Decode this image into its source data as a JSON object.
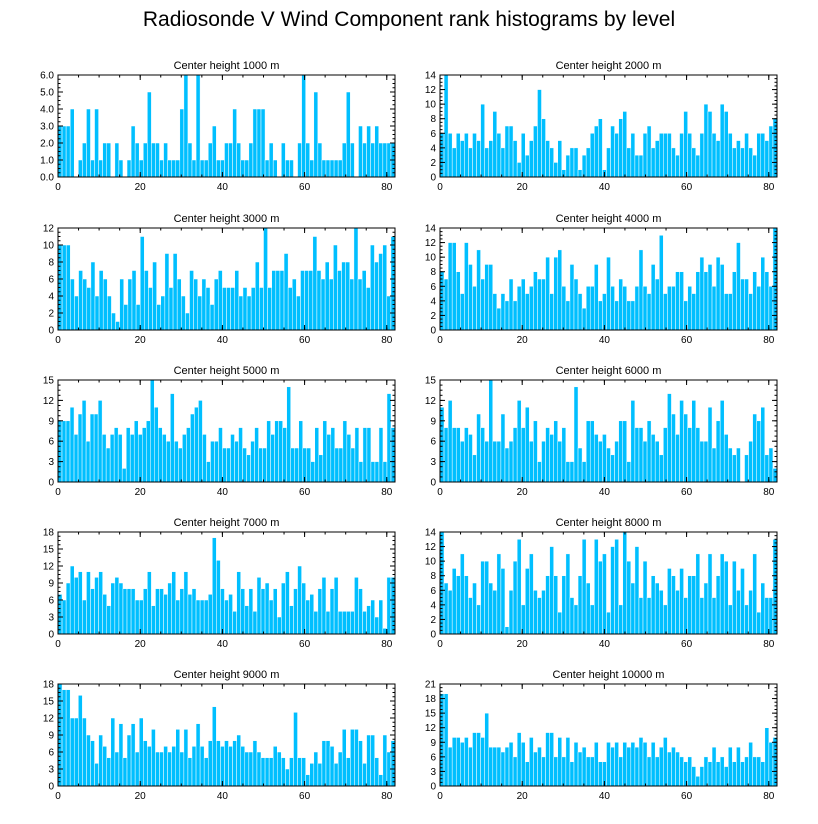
{
  "title": "Radiosonde V Wind Component rank histograms by level",
  "chart_data": [
    {
      "type": "bar",
      "title": "Center height 1000 m",
      "xticks": [
        "0",
        "20",
        "40",
        "60",
        "80"
      ],
      "yticks": [
        "0.0",
        "1.0",
        "2.0",
        "3.0",
        "4.0",
        "5.0",
        "6.0"
      ],
      "ylim": [
        0,
        6
      ],
      "xlim": [
        0,
        82
      ],
      "values": [
        3,
        3,
        3,
        4,
        0,
        1,
        2,
        4,
        1,
        4,
        1,
        2,
        2,
        0,
        2,
        1,
        0,
        1,
        3,
        2,
        1,
        2,
        5,
        2,
        2,
        1,
        2,
        1,
        1,
        1,
        4,
        6,
        2,
        1,
        6,
        1,
        1,
        2,
        3,
        1,
        1,
        2,
        2,
        4,
        2,
        1,
        1,
        2,
        4,
        4,
        4,
        1,
        2,
        1,
        0,
        2,
        1,
        1,
        0,
        2,
        6,
        2,
        1,
        5,
        2,
        1,
        1,
        1,
        1,
        1,
        2,
        5,
        2,
        0,
        3,
        2,
        3,
        2,
        3,
        2,
        2,
        2,
        2
      ]
    },
    {
      "type": "bar",
      "title": "Center height 2000 m",
      "xticks": [
        "0",
        "20",
        "40",
        "60",
        "80"
      ],
      "yticks": [
        "0",
        "2",
        "4",
        "6",
        "8",
        "10",
        "12",
        "14"
      ],
      "ylim": [
        0,
        14
      ],
      "xlim": [
        0,
        82
      ],
      "values": [
        6,
        14,
        6,
        4,
        6,
        5,
        6,
        4,
        6,
        5,
        10,
        4,
        5,
        9,
        6,
        4,
        7,
        7,
        5,
        2,
        6,
        3,
        5,
        7,
        12,
        8,
        5,
        4,
        2,
        5,
        1,
        3,
        4,
        4,
        1,
        3,
        4,
        6,
        7,
        8,
        1,
        4,
        7,
        6,
        8,
        9,
        4,
        6,
        3,
        3,
        6,
        7,
        4,
        5,
        6,
        6,
        6,
        4,
        3,
        6,
        9,
        6,
        4,
        3,
        6,
        10,
        9,
        6,
        5,
        10,
        9,
        6,
        4,
        5,
        4,
        6,
        4,
        3,
        6,
        6,
        5,
        7,
        8
      ]
    },
    {
      "type": "bar",
      "title": "Center height 3000 m",
      "xticks": [
        "0",
        "20",
        "40",
        "60",
        "80"
      ],
      "yticks": [
        "0",
        "2",
        "4",
        "6",
        "8",
        "10",
        "12"
      ],
      "ylim": [
        0,
        12
      ],
      "xlim": [
        0,
        82
      ],
      "values": [
        10,
        10,
        10,
        6,
        4,
        7,
        6,
        5,
        8,
        4,
        7,
        6,
        4,
        2,
        1,
        6,
        3,
        6,
        7,
        3,
        11,
        7,
        5,
        8,
        3,
        4,
        9,
        5,
        9,
        6,
        4,
        2,
        7,
        6,
        4,
        6,
        5,
        3,
        6,
        7,
        5,
        5,
        5,
        7,
        4,
        5,
        4,
        5,
        8,
        5,
        12,
        5,
        7,
        7,
        7,
        9,
        5,
        6,
        4,
        7,
        7,
        7,
        11,
        7,
        6,
        8,
        6,
        10,
        7,
        8,
        8,
        6,
        12,
        6,
        7,
        5,
        10,
        8,
        9,
        10,
        4,
        11
      ]
    },
    {
      "type": "bar",
      "title": "Center height 4000 m",
      "xticks": [
        "0",
        "20",
        "40",
        "60",
        "80"
      ],
      "yticks": [
        "0",
        "2",
        "4",
        "6",
        "8",
        "10",
        "12",
        "14"
      ],
      "ylim": [
        0,
        14
      ],
      "xlim": [
        0,
        82
      ],
      "values": [
        8,
        7,
        12,
        12,
        8,
        5,
        12,
        9,
        6,
        11,
        7,
        9,
        9,
        5,
        3,
        5,
        4,
        7,
        4,
        6,
        7,
        5,
        6,
        8,
        7,
        7,
        10,
        5,
        10,
        11,
        6,
        4,
        9,
        7,
        5,
        3,
        6,
        6,
        9,
        4,
        5,
        10,
        6,
        4,
        7,
        6,
        4,
        4,
        6,
        11,
        6,
        5,
        9,
        7,
        13,
        5,
        6,
        6,
        8,
        8,
        4,
        6,
        5,
        8,
        10,
        8,
        9,
        6,
        10,
        9,
        5,
        5,
        8,
        12,
        7,
        7,
        5,
        8,
        6,
        10,
        8,
        6,
        14
      ]
    },
    {
      "type": "bar",
      "title": "Center height 5000 m",
      "xticks": [
        "0",
        "20",
        "40",
        "60",
        "80"
      ],
      "yticks": [
        "0",
        "3",
        "6",
        "9",
        "12",
        "15"
      ],
      "ylim": [
        0,
        15
      ],
      "xlim": [
        0,
        82
      ],
      "values": [
        9,
        9,
        9,
        11,
        7,
        10,
        12,
        6,
        10,
        10,
        12,
        7,
        5,
        7,
        8,
        7,
        2,
        8,
        7,
        9,
        7,
        8,
        9,
        15,
        11,
        8,
        7,
        6,
        13,
        6,
        5,
        7,
        8,
        10,
        11,
        12,
        7,
        3,
        6,
        6,
        8,
        5,
        5,
        7,
        6,
        8,
        5,
        4,
        6,
        8,
        5,
        5,
        9,
        7,
        9,
        9,
        8,
        14,
        5,
        5,
        9,
        5,
        5,
        3,
        8,
        4,
        9,
        7,
        8,
        5,
        5,
        9,
        7,
        5,
        8,
        3,
        8,
        8,
        3,
        3,
        8,
        3,
        13,
        8
      ]
    },
    {
      "type": "bar",
      "title": "Center height 6000 m",
      "xticks": [
        "0",
        "20",
        "40",
        "60",
        "80"
      ],
      "yticks": [
        "0",
        "3",
        "6",
        "9",
        "12",
        "15"
      ],
      "ylim": [
        0,
        15
      ],
      "xlim": [
        0,
        82
      ],
      "values": [
        11,
        8,
        12,
        8,
        8,
        6,
        8,
        7,
        4,
        10,
        8,
        6,
        15,
        6,
        6,
        10,
        5,
        6,
        8,
        12,
        8,
        11,
        6,
        9,
        3,
        6,
        8,
        7,
        9,
        6,
        8,
        3,
        3,
        14,
        5,
        3,
        9,
        9,
        7,
        6,
        7,
        5,
        4,
        6,
        9,
        9,
        3,
        12,
        8,
        8,
        6,
        9,
        7,
        6,
        4,
        8,
        13,
        10,
        7,
        12,
        10,
        8,
        12,
        8,
        6,
        6,
        11,
        5,
        9,
        12,
        7,
        5,
        4,
        5,
        0,
        4,
        6,
        10,
        9,
        11,
        4,
        5,
        2
      ]
    },
    {
      "type": "bar",
      "title": "Center height 7000 m",
      "xticks": [
        "0",
        "20",
        "40",
        "60",
        "80"
      ],
      "yticks": [
        "0",
        "3",
        "6",
        "9",
        "12",
        "15",
        "18"
      ],
      "ylim": [
        0,
        18
      ],
      "xlim": [
        0,
        82
      ],
      "values": [
        7,
        6,
        9,
        12,
        10,
        11,
        6,
        11,
        8,
        10,
        11,
        7,
        5,
        9,
        10,
        9,
        8,
        8,
        8,
        6,
        6,
        8,
        11,
        5,
        8,
        8,
        7,
        9,
        11,
        6,
        8,
        11,
        7,
        8,
        6,
        6,
        6,
        7,
        17,
        13,
        8,
        6,
        7,
        4,
        11,
        8,
        5,
        8,
        4,
        10,
        8,
        9,
        6,
        8,
        3,
        9,
        11,
        5,
        8,
        12,
        9,
        6,
        7,
        4,
        8,
        10,
        4,
        8,
        10,
        4,
        4,
        4,
        4,
        10,
        8,
        4,
        5,
        6,
        3,
        6,
        1,
        10,
        10
      ]
    },
    {
      "type": "bar",
      "title": "Center height 8000 m",
      "xticks": [
        "0",
        "20",
        "40",
        "60",
        "80"
      ],
      "yticks": [
        "0",
        "2",
        "4",
        "6",
        "8",
        "10",
        "12",
        "14"
      ],
      "ylim": [
        0,
        14
      ],
      "xlim": [
        0,
        82
      ],
      "values": [
        14,
        7,
        6,
        9,
        8,
        11,
        8,
        5,
        7,
        4,
        10,
        10,
        7,
        6,
        11,
        9,
        1,
        6,
        10,
        13,
        4,
        9,
        11,
        6,
        5,
        6,
        8,
        12,
        8,
        3,
        8,
        11,
        5,
        4,
        8,
        13,
        7,
        4,
        13,
        10,
        11,
        3,
        12,
        13,
        4,
        14,
        10,
        7,
        12,
        5,
        10,
        5,
        8,
        7,
        6,
        4,
        9,
        8,
        6,
        9,
        5,
        8,
        8,
        11,
        5,
        7,
        11,
        5,
        8,
        11,
        10,
        4,
        10,
        6,
        9,
        4,
        6,
        11,
        3,
        7,
        5,
        5,
        13
      ]
    },
    {
      "type": "bar",
      "title": "Center height 9000 m",
      "xticks": [
        "0",
        "20",
        "40",
        "60",
        "80"
      ],
      "yticks": [
        "0",
        "3",
        "6",
        "9",
        "12",
        "15",
        "18"
      ],
      "ylim": [
        0,
        18
      ],
      "xlim": [
        0,
        82
      ],
      "values": [
        18,
        17,
        17,
        12,
        12,
        16,
        12,
        9,
        8,
        4,
        9,
        7,
        5,
        12,
        6,
        11,
        5,
        9,
        11,
        6,
        12,
        8,
        7,
        10,
        6,
        6,
        7,
        6,
        7,
        10,
        6,
        10,
        5,
        7,
        11,
        7,
        5,
        8,
        14,
        8,
        7,
        8,
        7,
        8,
        9,
        7,
        6,
        6,
        8,
        6,
        5,
        5,
        5,
        7,
        6,
        5,
        3,
        5,
        13,
        5,
        5,
        2,
        4,
        6,
        4,
        8,
        8,
        7,
        4,
        6,
        10,
        5,
        10,
        10,
        8,
        4,
        9,
        9,
        5,
        2,
        9,
        6,
        8
      ]
    },
    {
      "type": "bar",
      "title": "Center height 10000 m",
      "xticks": [
        "0",
        "20",
        "40",
        "60",
        "80"
      ],
      "yticks": [
        "0",
        "3",
        "6",
        "9",
        "12",
        "15",
        "18",
        "21"
      ],
      "ylim": [
        0,
        21
      ],
      "xlim": [
        0,
        82
      ],
      "values": [
        19,
        19,
        8,
        10,
        10,
        9,
        10,
        8,
        11,
        11,
        10,
        15,
        8,
        8,
        8,
        7,
        8,
        9,
        6,
        11,
        9,
        5,
        10,
        7,
        8,
        6,
        11,
        11,
        6,
        10,
        6,
        10,
        5,
        9,
        7,
        8,
        6,
        6,
        9,
        5,
        5,
        9,
        8,
        9,
        6,
        9,
        8,
        9,
        8,
        10,
        9,
        6,
        9,
        6,
        8,
        10,
        7,
        8,
        7,
        6,
        5,
        6,
        4,
        2,
        4,
        6,
        5,
        8,
        5,
        6,
        4,
        8,
        5,
        8,
        5,
        6,
        9,
        6,
        6,
        5,
        12,
        9,
        10
      ]
    }
  ]
}
